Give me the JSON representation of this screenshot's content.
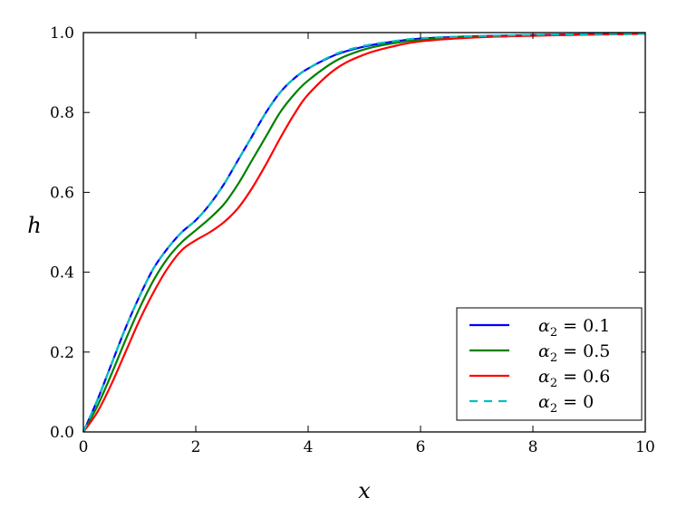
{
  "chart_data": {
    "type": "line",
    "title": "",
    "xlabel": "x",
    "ylabel": "h",
    "xlim": [
      0,
      10
    ],
    "ylim": [
      0,
      1
    ],
    "xticks": [
      0,
      2,
      4,
      6,
      8,
      10
    ],
    "yticks": [
      0.0,
      0.2,
      0.4,
      0.6,
      0.8,
      1.0
    ],
    "xtick_labels": [
      "0",
      "2",
      "4",
      "6",
      "8",
      "10"
    ],
    "ytick_labels": [
      "0.0",
      "0.2",
      "0.4",
      "0.6",
      "0.8",
      "1.0"
    ],
    "grid": false,
    "legend_position": "lower-right",
    "x": [
      0,
      0.25,
      0.5,
      0.75,
      1.0,
      1.25,
      1.5,
      1.75,
      2.0,
      2.25,
      2.5,
      2.75,
      3.0,
      3.25,
      3.5,
      3.75,
      4.0,
      4.5,
      5.0,
      5.5,
      6.0,
      7.0,
      8.0,
      9.0,
      10.0
    ],
    "series": [
      {
        "name": "α₂ = 0.1",
        "label_base": "α",
        "label_sub": "2",
        "label_rest": " = 0.1",
        "color": "#0000ff",
        "dash": "solid",
        "values": [
          0.0,
          0.08,
          0.17,
          0.26,
          0.34,
          0.41,
          0.46,
          0.5,
          0.53,
          0.57,
          0.62,
          0.68,
          0.74,
          0.8,
          0.85,
          0.885,
          0.91,
          0.945,
          0.965,
          0.977,
          0.985,
          0.991,
          0.994,
          0.996,
          0.997
        ]
      },
      {
        "name": "α₂ = 0.5",
        "label_base": "α",
        "label_sub": "2",
        "label_rest": " = 0.5",
        "color": "#008000",
        "dash": "solid",
        "values": [
          0.0,
          0.065,
          0.145,
          0.23,
          0.31,
          0.38,
          0.435,
          0.475,
          0.505,
          0.535,
          0.57,
          0.62,
          0.68,
          0.74,
          0.8,
          0.845,
          0.88,
          0.93,
          0.958,
          0.973,
          0.982,
          0.99,
          0.993,
          0.995,
          0.997
        ]
      },
      {
        "name": "α₂ = 0.6",
        "label_base": "α",
        "label_sub": "2",
        "label_rest": " = 0.6",
        "color": "#ff0000",
        "dash": "solid",
        "values": [
          0.0,
          0.05,
          0.12,
          0.2,
          0.28,
          0.35,
          0.41,
          0.455,
          0.48,
          0.5,
          0.525,
          0.56,
          0.61,
          0.67,
          0.735,
          0.795,
          0.845,
          0.91,
          0.945,
          0.965,
          0.978,
          0.988,
          0.992,
          0.995,
          0.997
        ]
      },
      {
        "name": "α₂ = 0",
        "label_base": "α",
        "label_sub": "2",
        "label_rest": " = 0",
        "color": "#00bfbf",
        "dash": "dashed",
        "values": [
          0.0,
          0.08,
          0.17,
          0.26,
          0.34,
          0.41,
          0.46,
          0.5,
          0.53,
          0.57,
          0.62,
          0.68,
          0.74,
          0.8,
          0.85,
          0.885,
          0.91,
          0.947,
          0.967,
          0.978,
          0.986,
          0.991,
          0.994,
          0.996,
          0.997
        ]
      }
    ]
  }
}
